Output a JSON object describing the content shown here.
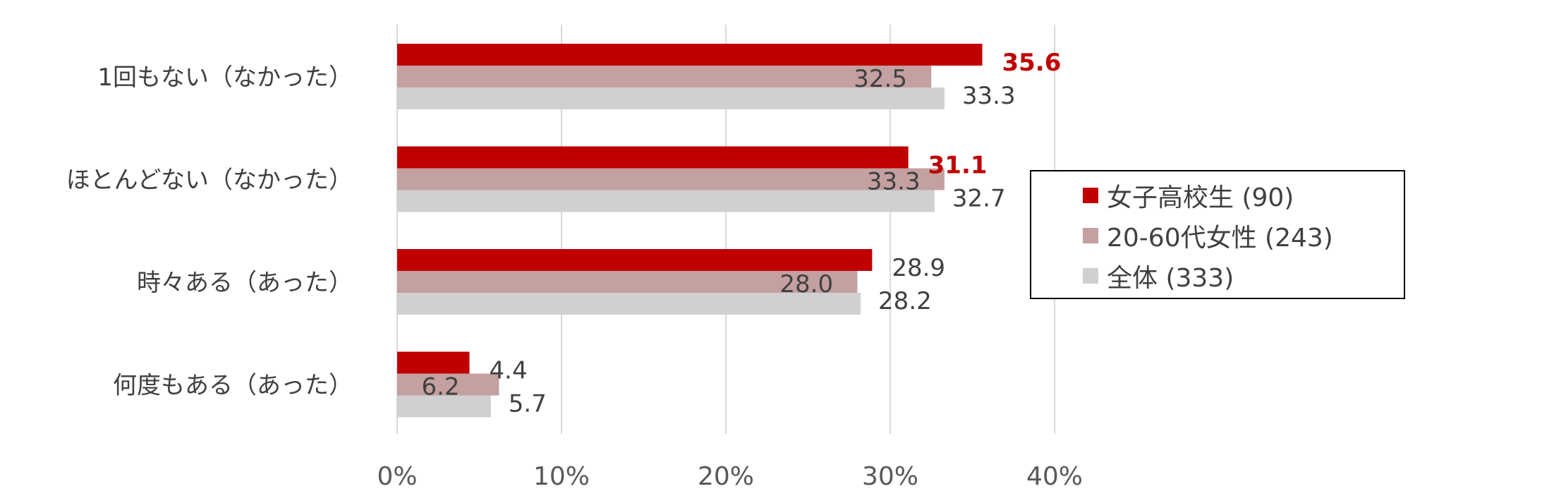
{
  "chart_data": {
    "type": "bar",
    "orientation": "horizontal",
    "categories": [
      "1回もない（なかった）",
      "ほとんどない（なかった）",
      "時々ある（あった）",
      "何度もある（あった）"
    ],
    "series": [
      {
        "name": "女子高校生 (90)",
        "color": "#c00000",
        "values": [
          35.6,
          31.1,
          28.9,
          4.4
        ],
        "emphasize_labels": [
          true,
          true,
          false,
          false
        ]
      },
      {
        "name": "20-60代女性 (243)",
        "color": "#c4a0a0",
        "values": [
          32.5,
          33.3,
          28.0,
          6.2
        ],
        "emphasize_labels": [
          false,
          false,
          false,
          false
        ]
      },
      {
        "name": "全体 (333)",
        "color": "#d0d0d0",
        "values": [
          33.3,
          32.7,
          28.2,
          5.7
        ],
        "emphasize_labels": [
          false,
          false,
          false,
          false
        ]
      }
    ],
    "value_labels": [
      [
        "35.6",
        "31.1",
        "28.9",
        "4.4"
      ],
      [
        "32.5",
        "33.3",
        "28.0",
        "6.2"
      ],
      [
        "33.3",
        "32.7",
        "28.2",
        "5.7"
      ]
    ],
    "xlim": [
      0,
      40
    ],
    "xticks": [
      0,
      10,
      20,
      30,
      40
    ],
    "xtick_labels": [
      "0%",
      "10%",
      "20%",
      "30%",
      "40%"
    ],
    "grid": true,
    "legend_position": "right"
  }
}
